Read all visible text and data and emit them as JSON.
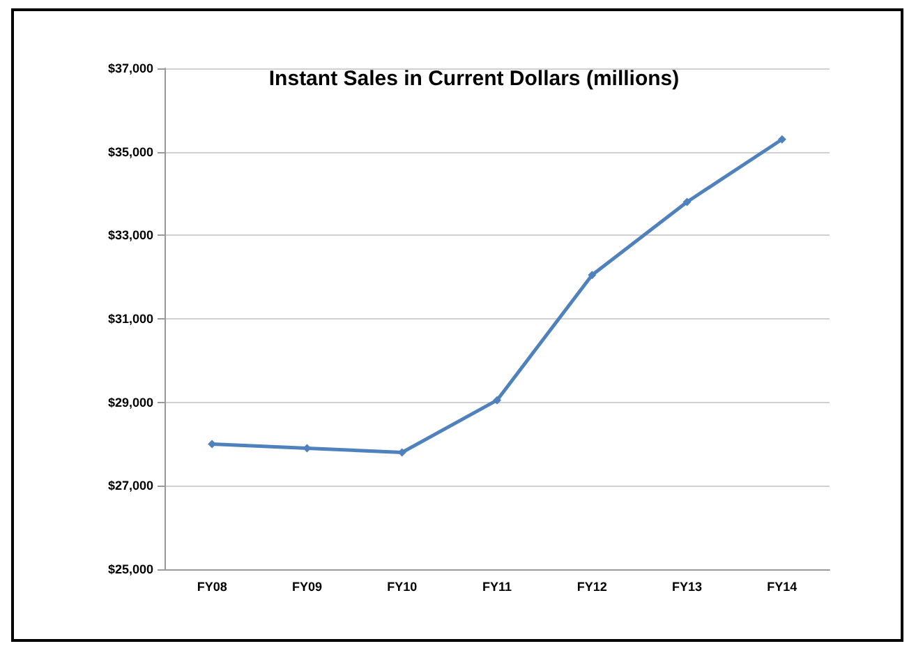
{
  "chart_data": {
    "type": "line",
    "title": "Instant Sales in Current Dollars (millions)",
    "categories": [
      "FY08",
      "FY09",
      "FY10",
      "FY11",
      "FY12",
      "FY13",
      "FY14"
    ],
    "series": [
      {
        "color": "#4f81bd",
        "values": [
          28000,
          27900,
          27800,
          29050,
          32050,
          33800,
          35300
        ]
      }
    ],
    "ylim": [
      25000,
      37000
    ],
    "yticks": [
      {
        "value": 25000,
        "label": "$25,000"
      },
      {
        "value": 27000,
        "label": "$27,000"
      },
      {
        "value": 29000,
        "label": "$29,000"
      },
      {
        "value": 31000,
        "label": "$31,000"
      },
      {
        "value": 33000,
        "label": "$33,000"
      },
      {
        "value": 35000,
        "label": "$35,000"
      },
      {
        "value": 37000,
        "label": "$37,000"
      }
    ],
    "grid": "y",
    "marker": "diamond",
    "line_style": "solid"
  }
}
